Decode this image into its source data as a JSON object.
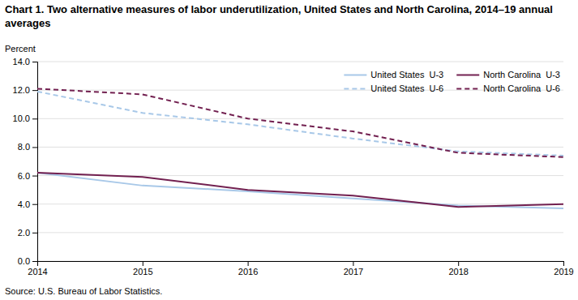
{
  "chart_data": {
    "type": "line",
    "title": "Chart 1. Two alternative measures of labor underutilization, United States and North Carolina, 2014–19 annual averages",
    "y_label": "Percent",
    "source": "Source: U.S. Bureau of Labor Statistics.",
    "x": [
      2014,
      2015,
      2016,
      2017,
      2018,
      2019
    ],
    "series": [
      {
        "name": "United States  U-3",
        "color": "#a8c8e8",
        "line_style": "solid",
        "values": [
          6.2,
          5.3,
          4.9,
          4.4,
          3.9,
          3.7
        ]
      },
      {
        "name": "United States  U-6",
        "color": "#a8c8e8",
        "line_style": "dashed",
        "values": [
          11.9,
          10.4,
          9.6,
          8.6,
          7.7,
          7.4
        ]
      },
      {
        "name": "North Carolina  U-3",
        "color": "#722050",
        "line_style": "solid",
        "values": [
          6.2,
          5.9,
          5.0,
          4.6,
          3.8,
          4.0
        ]
      },
      {
        "name": "North Carolina  U-6",
        "color": "#722050",
        "line_style": "dashed",
        "values": [
          12.1,
          11.7,
          10.0,
          9.1,
          7.6,
          7.3
        ]
      }
    ],
    "xlim": [
      2014,
      2019
    ],
    "xticks": [
      2014,
      2015,
      2016,
      2017,
      2018,
      2019
    ],
    "ylim": [
      0.0,
      14.0
    ],
    "yticks": [
      {
        "value": 0.0,
        "label": "0.0"
      },
      {
        "value": 2.0,
        "label": "2.0"
      },
      {
        "value": 4.0,
        "label": "4.0"
      },
      {
        "value": 6.0,
        "label": "6.0"
      },
      {
        "value": 8.0,
        "label": "8.0"
      },
      {
        "value": 10.0,
        "label": "10.0"
      },
      {
        "value": 12.0,
        "label": "12.0"
      },
      {
        "value": 14.0,
        "label": "14.0"
      }
    ],
    "grid": true,
    "legend": "upper right"
  }
}
